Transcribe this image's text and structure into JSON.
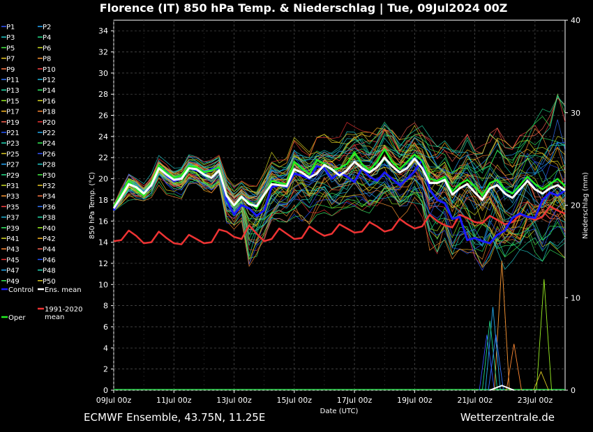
{
  "header": {
    "title": "Florence  (IT)  850 hPa Temp. & Niederschlag | Tue, 09Jul2024 00Z"
  },
  "footer": {
    "left": "ECMWF Ensemble, 43.75N, 11.25E",
    "right": "Wetterzentrale.de"
  },
  "chart_data": {
    "type": "line",
    "title": "Florence  (IT)  850 hPa Temp. & Niederschlag | Tue, 09Jul2024 00Z",
    "xlabel": "Date (UTC)",
    "ylabel": "850 hPa Temp. (°C)",
    "ylabel_right": "Niederschlag (mm)",
    "x_ticks": [
      "09Jul 00z",
      "11Jul 00z",
      "13Jul 00z",
      "15Jul 00z",
      "17Jul 00z",
      "19Jul 00z",
      "21Jul 00z",
      "23Jul 00z"
    ],
    "x_range_days": [
      0,
      15
    ],
    "y_ticks": [
      0,
      2,
      4,
      6,
      8,
      10,
      12,
      14,
      16,
      18,
      20,
      22,
      24,
      26,
      28,
      30,
      32,
      34
    ],
    "ylim": [
      0,
      35
    ],
    "y2_ticks": [
      0,
      10,
      20,
      30,
      40
    ],
    "y2lim": [
      0,
      40
    ],
    "grid": true,
    "step_hours": 6,
    "legend_position": "left",
    "series": [
      {
        "name": "Control",
        "color": "#1a1aff",
        "values": [
          17.0,
          18.4,
          19.6,
          19.1,
          18.5,
          19.4,
          21.1,
          20.3,
          19.8,
          20.0,
          21.0,
          20.8,
          20.5,
          20.9,
          21.0,
          18.0,
          16.6,
          17.5,
          17.2,
          16.5,
          17.0,
          19.2,
          19.4,
          19.2,
          20.5,
          20.3,
          20.0,
          21.2,
          21.0,
          20.0,
          20.6,
          20.2,
          19.7,
          21.0,
          20.2,
          19.8,
          20.6,
          20.0,
          19.4,
          20.0,
          20.7,
          21.8,
          19.0,
          18.0,
          17.7,
          16.2,
          16.4,
          14.2,
          14.4,
          14.1,
          13.9,
          14.7,
          15.1,
          16.3,
          16.7,
          16.4,
          16.3,
          18.0,
          18.7,
          18.4,
          18.9
        ]
      },
      {
        "name": "Ens. mean",
        "color": "#ffffff",
        "values": [
          17.2,
          18.3,
          19.5,
          19.2,
          18.6,
          19.4,
          21.0,
          20.4,
          19.9,
          20.0,
          21.0,
          20.9,
          20.4,
          20.1,
          20.8,
          18.4,
          17.5,
          18.3,
          17.6,
          17.4,
          18.5,
          19.5,
          19.4,
          19.3,
          20.9,
          20.6,
          20.1,
          20.5,
          21.3,
          20.9,
          20.3,
          20.8,
          21.6,
          21.0,
          20.6,
          21.1,
          22.0,
          21.2,
          20.6,
          21.0,
          21.9,
          21.0,
          19.6,
          19.6,
          19.9,
          18.5,
          19.1,
          19.5,
          18.7,
          18.0,
          19.1,
          19.4,
          18.6,
          18.2,
          19.0,
          19.8,
          19.0,
          18.6,
          19.1,
          19.4,
          18.9
        ]
      },
      {
        "name": "Oper",
        "color": "#22ee22",
        "values": [
          17.4,
          18.6,
          19.8,
          19.0,
          18.4,
          19.6,
          21.3,
          20.6,
          20.1,
          20.3,
          21.2,
          21.1,
          20.6,
          20.8,
          21.1,
          18.5,
          17.4,
          18.2,
          17.8,
          17.2,
          18.4,
          19.8,
          19.6,
          19.5,
          21.6,
          21.0,
          20.4,
          21.8,
          21.4,
          20.8,
          21.0,
          21.4,
          22.5,
          21.4,
          20.8,
          21.6,
          22.8,
          21.6,
          20.9,
          21.6,
          22.3,
          21.7,
          20.0,
          19.8,
          20.2,
          18.8,
          19.5,
          19.9,
          19.3,
          18.4,
          19.6,
          19.9,
          19.0,
          18.6,
          19.4,
          20.2,
          19.5,
          19.0,
          19.5,
          20.0,
          19.3
        ]
      },
      {
        "name": "1991-2020 mean",
        "color": "#ee3333",
        "values": [
          14.1,
          14.2,
          15.1,
          14.6,
          13.9,
          14.0,
          15.0,
          14.4,
          13.9,
          13.8,
          14.7,
          14.3,
          13.9,
          14.0,
          15.2,
          15.0,
          14.5,
          14.3,
          15.6,
          14.8,
          14.1,
          14.3,
          15.3,
          14.8,
          14.3,
          14.4,
          15.5,
          15.0,
          14.6,
          14.8,
          15.7,
          15.3,
          14.9,
          15.0,
          15.9,
          15.5,
          15.0,
          15.2,
          16.2,
          15.7,
          15.3,
          15.5,
          16.6,
          16.0,
          15.6,
          15.4,
          16.6,
          16.3,
          15.9,
          15.8,
          16.5,
          16.1,
          15.7,
          15.9,
          16.6,
          16.4,
          16.1,
          16.4,
          17.4,
          17.0,
          16.7
        ]
      }
    ],
    "ensemble_spread": {
      "max": [
        17.9,
        19.5,
        21.0,
        20.3,
        19.6,
        20.5,
        22.2,
        21.6,
        21.0,
        21.2,
        22.4,
        22.1,
        21.6,
        21.9,
        22.3,
        20.2,
        19.3,
        19.8,
        19.4,
        19.3,
        20.6,
        22.5,
        22.0,
        22.1,
        23.9,
        23.4,
        23.1,
        24.5,
        24.2,
        23.8,
        24.4,
        25.4,
        24.9,
        24.9,
        24.4,
        24.8,
        25.6,
        25.0,
        24.2,
        24.9,
        25.3,
        25.1,
        24.0,
        23.2,
        23.6,
        22.8,
        23.2,
        24.2,
        24.0,
        23.5,
        24.3,
        24.8,
        23.6,
        22.9,
        24.1,
        24.6,
        25.5,
        26.6,
        26.3,
        28.0,
        27.0
      ],
      "min": [
        16.6,
        17.0,
        17.6,
        17.5,
        17.7,
        18.0,
        19.4,
        18.5,
        18.3,
        18.1,
        19.2,
        19.1,
        18.4,
        18.3,
        19.0,
        15.5,
        15.2,
        16.0,
        10.7,
        12.3,
        13.3,
        15.1,
        15.6,
        15.9,
        16.4,
        16.0,
        15.7,
        16.6,
        16.8,
        16.5,
        16.9,
        17.0,
        17.4,
        17.0,
        16.6,
        16.9,
        17.3,
        16.9,
        16.2,
        16.9,
        17.1,
        16.4,
        13.0,
        12.4,
        14.0,
        12.4,
        13.3,
        12.9,
        11.4,
        10.9,
        11.4,
        11.3,
        11.1,
        11.7,
        12.4,
        13.1,
        12.6,
        12.2,
        12.6,
        12.9,
        12.5
      ]
    },
    "precipitation_mm": {
      "peak_values": [
        6.0,
        14.0,
        12.0,
        9.0,
        7.5,
        6.0,
        5.0,
        2.0
      ],
      "peak_positions_days": [
        12.4,
        12.9,
        14.3,
        12.6,
        12.5,
        12.7,
        13.3,
        14.2
      ],
      "ens_mean_max": 0.5
    },
    "members": {
      "columns": [
        [
          "P1",
          "P3",
          "P5",
          "P7",
          "P9",
          "P11",
          "P13",
          "P15",
          "P17",
          "P19",
          "P21",
          "P23",
          "P25",
          "P27",
          "P29",
          "P31",
          "P33",
          "P35",
          "P37",
          "P39",
          "P41",
          "P43",
          "P45",
          "P47",
          "P49"
        ],
        [
          "P2",
          "P4",
          "P6",
          "P8",
          "P10",
          "P12",
          "P14",
          "P16",
          "P18",
          "P20",
          "P22",
          "P24",
          "P26",
          "P28",
          "P30",
          "P32",
          "P34",
          "P36",
          "P38",
          "P40",
          "P42",
          "P44",
          "P46",
          "P48",
          "P50"
        ]
      ],
      "colors": [
        "#3355ff",
        "#22aaff",
        "#22cccc",
        "#22dd88",
        "#44ee44",
        "#ccdd22",
        "#eecc22",
        "#ff9933",
        "#ff7744",
        "#ff4444",
        "#3377ff",
        "#22bbdd",
        "#22ddaa",
        "#33ee66",
        "#99ee22",
        "#dddd22",
        "#ffbb22",
        "#ff8833",
        "#ff6655",
        "#ee3333",
        "#2255ff",
        "#22aaee",
        "#22ddbb",
        "#33ee55",
        "#ddcc22"
      ]
    }
  }
}
